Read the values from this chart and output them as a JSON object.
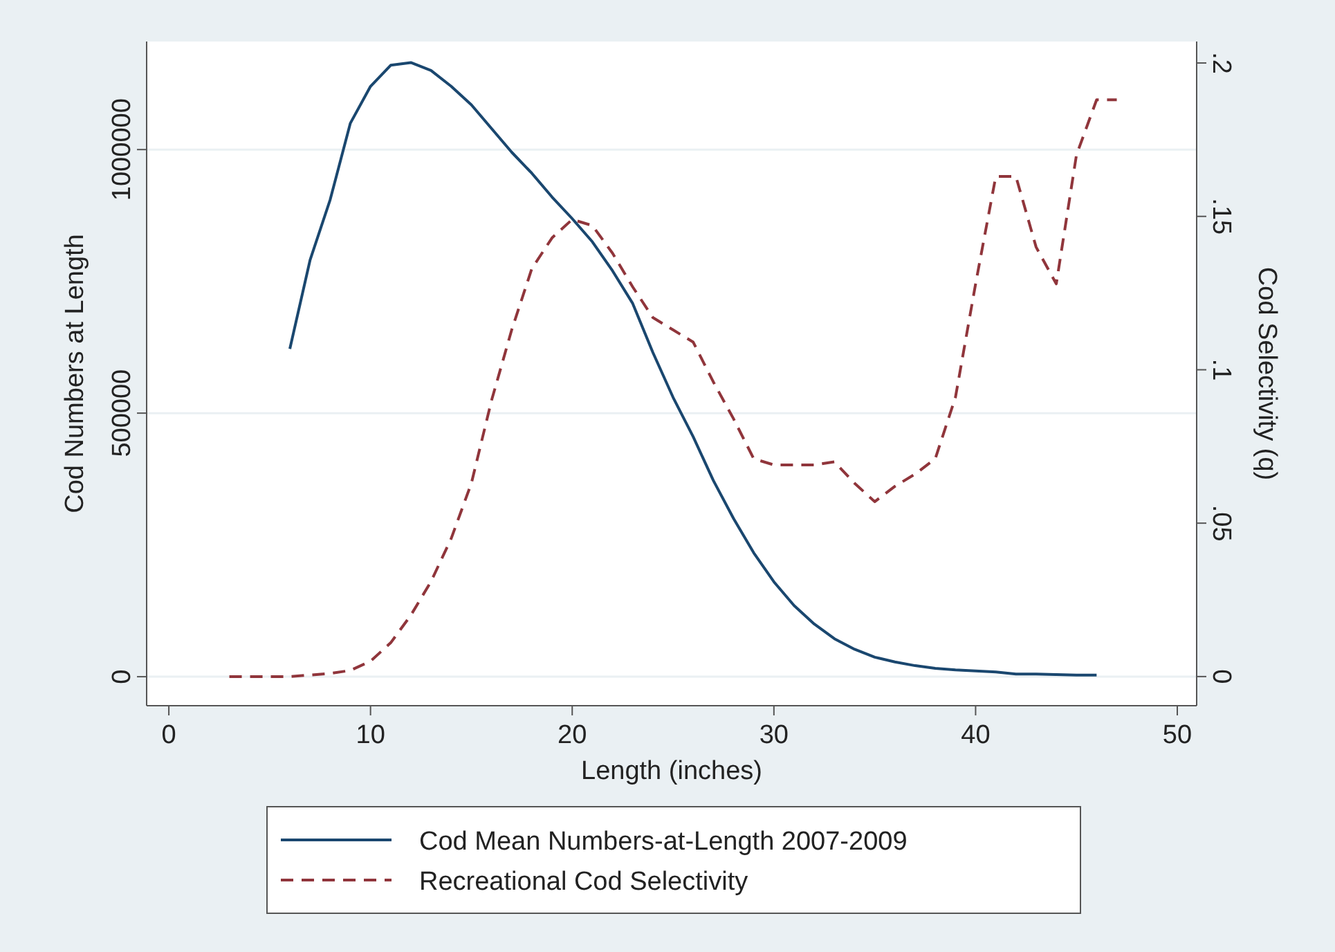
{
  "chart_data": {
    "type": "line",
    "xlabel": "Length (inches)",
    "ylabel": "Cod Numbers at Length",
    "y2label": "Cod Selectivity (q)",
    "xlim": [
      -1.1,
      50.96
    ],
    "xticks": [
      0,
      10,
      20,
      30,
      40,
      50
    ],
    "ylim": [
      -55000,
      1205000
    ],
    "yticks": [
      0,
      500000,
      1000000
    ],
    "y2lim": [
      -0.0095,
      0.207
    ],
    "y2ticks": [
      0,
      {
        "value": 0.05,
        "label": ".05"
      },
      {
        "value": 0.1,
        "label": ".1"
      },
      {
        "value": 0.15,
        "label": ".15"
      },
      {
        "value": 0.2,
        "label": ".2"
      }
    ],
    "grid": "y",
    "legend": "bottom",
    "series": [
      {
        "name": "Cod Mean Numbers-at-Length 2007-2009",
        "color": "#1a476f",
        "line_style": "solid",
        "x": [
          6,
          7,
          8,
          9,
          10,
          11,
          12,
          13,
          14,
          15,
          16,
          17,
          18,
          19,
          20,
          21,
          22,
          23,
          24,
          25,
          26,
          27,
          28,
          29,
          30,
          31,
          32,
          33,
          34,
          35,
          36,
          37,
          38,
          39,
          40,
          41,
          42,
          43,
          44,
          45,
          46
        ],
        "values": [
          622000,
          790000,
          905000,
          1050000,
          1120000,
          1160000,
          1165000,
          1150000,
          1120000,
          1085000,
          1040000,
          995000,
          955000,
          910000,
          869000,
          825000,
          770000,
          708000,
          615000,
          530000,
          455000,
          372000,
          300000,
          235000,
          180000,
          135000,
          100000,
          72000,
          52000,
          37000,
          28000,
          21000,
          16000,
          13000,
          11000,
          9000,
          5000,
          5000,
          4000,
          3000,
          3000
        ]
      },
      {
        "name": "Recreational Cod Selectivity",
        "color": "#90353b",
        "line_style": "dashed",
        "axis": "y2",
        "x": [
          3,
          4,
          5,
          6,
          7,
          8,
          9,
          10,
          11,
          12,
          13,
          14,
          15,
          16,
          17,
          18,
          19,
          20,
          21,
          22,
          23,
          24,
          25,
          26,
          27,
          28,
          29,
          30,
          31,
          32,
          33,
          34,
          35,
          36,
          37,
          38,
          39,
          40,
          41,
          42,
          43,
          44,
          45,
          46,
          47
        ],
        "values": [
          0,
          0,
          0,
          0,
          0.0005,
          0.001,
          0.002,
          0.005,
          0.011,
          0.02,
          0.031,
          0.045,
          0.063,
          0.09,
          0.113,
          0.133,
          0.143,
          0.149,
          0.147,
          0.138,
          0.127,
          0.117,
          0.113,
          0.109,
          0.096,
          0.084,
          0.071,
          0.069,
          0.069,
          0.069,
          0.07,
          0.063,
          0.057,
          0.062,
          0.066,
          0.071,
          0.091,
          0.128,
          0.163,
          0.163,
          0.14,
          0.128,
          0.17,
          0.188,
          0.188
        ]
      }
    ]
  }
}
